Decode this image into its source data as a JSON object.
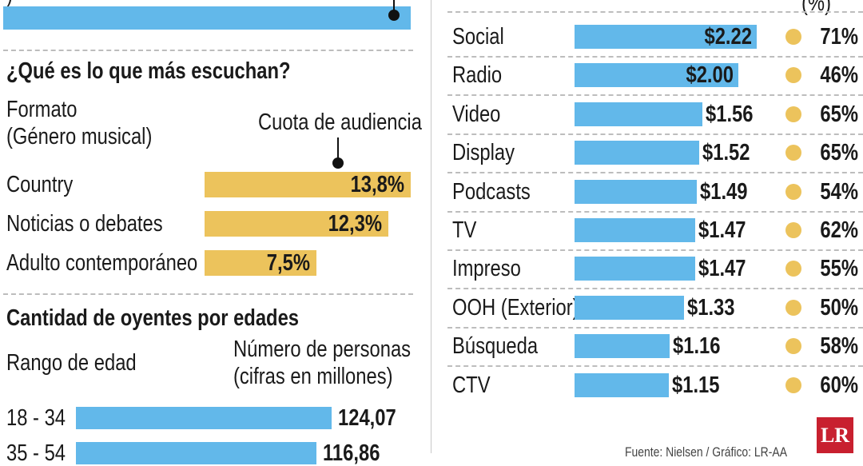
{
  "left": {
    "top_bar_value": null,
    "formato": {
      "title": "¿Qué es lo que más escuchan?",
      "col1": [
        "Formato",
        "(Género musical)"
      ],
      "col2": "Cuota de audiencia",
      "rows": [
        {
          "label": "Country",
          "value": "13,8%"
        },
        {
          "label": "Noticias o debates",
          "value": "12,3%"
        },
        {
          "label": "Adulto contemporáneo",
          "value": "7,5%"
        }
      ]
    },
    "edades": {
      "title": "Cantidad de oyentes por edades",
      "col1": "Rango de edad",
      "col2": [
        "Número de personas",
        "(cifras en millones)"
      ],
      "rows": [
        {
          "label": "18 - 34",
          "value": "124,07"
        },
        {
          "label": "35 - 54",
          "value": "116,86"
        }
      ]
    }
  },
  "right": {
    "pct_header": "(%)",
    "rows": [
      {
        "label": "Social",
        "value": "$2.22",
        "pct": "71%"
      },
      {
        "label": "Radio",
        "value": "$2.00",
        "pct": "46%"
      },
      {
        "label": "Video",
        "value": "$1.56",
        "pct": "65%"
      },
      {
        "label": "Display",
        "value": "$1.52",
        "pct": "65%"
      },
      {
        "label": "Podcasts",
        "value": "$1.49",
        "pct": "54%"
      },
      {
        "label": "TV",
        "value": "$1.47",
        "pct": "62%"
      },
      {
        "label": "Impreso",
        "value": "$1.47",
        "pct": "55%"
      },
      {
        "label": "OOH (Exterior)",
        "value": "$1.33",
        "pct": "50%"
      },
      {
        "label": "Búsqueda",
        "value": "$1.16",
        "pct": "58%"
      },
      {
        "label": "CTV",
        "value": "$1.15",
        "pct": "60%"
      }
    ],
    "source": "Fuente: Nielsen / Gráfico: LR-AA",
    "logo": "LR"
  },
  "colors": {
    "blue": "#62b8ea",
    "gold": "#ecc35c",
    "logo": "#c8202f"
  },
  "chart_data": [
    {
      "type": "bar",
      "title": "¿Qué es lo que más escuchan?",
      "xlabel": "Formato (Género musical)",
      "ylabel": "Cuota de audiencia",
      "categories": [
        "Country",
        "Noticias o debates",
        "Adulto contemporáneo"
      ],
      "values": [
        13.8,
        12.3,
        7.5
      ],
      "unit": "%"
    },
    {
      "type": "bar",
      "title": "Cantidad de oyentes por edades",
      "xlabel": "Rango de edad",
      "ylabel": "Número de personas (cifras en millones)",
      "categories": [
        "18 - 34",
        "35 - 54"
      ],
      "values": [
        124.07,
        116.86
      ]
    },
    {
      "type": "bar",
      "title": "",
      "categories": [
        "Social",
        "Radio",
        "Video",
        "Display",
        "Podcasts",
        "TV",
        "Impreso",
        "OOH (Exterior)",
        "Búsqueda",
        "CTV"
      ],
      "values": [
        2.22,
        2.0,
        1.56,
        1.52,
        1.49,
        1.47,
        1.47,
        1.33,
        1.16,
        1.15
      ],
      "pct": [
        71,
        46,
        65,
        65,
        54,
        62,
        55,
        50,
        58,
        60
      ],
      "unit": "$"
    }
  ]
}
